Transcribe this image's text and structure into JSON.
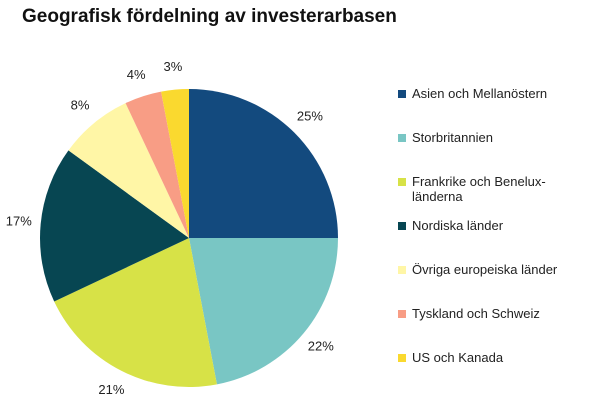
{
  "chart_data": {
    "type": "pie",
    "title": "Geografisk fördelning av investerarbasen",
    "slices": [
      {
        "name": "Asien och Mellanöstern",
        "value": 25,
        "label": "25%",
        "color": "#134a7e"
      },
      {
        "name": "Storbritannien",
        "value": 22,
        "label": "22%",
        "color": "#79c6c4"
      },
      {
        "name": "Frankrike och Benelux-länderna",
        "value": 21,
        "label": "21%",
        "color": "#d7e247"
      },
      {
        "name": "Nordiska länder",
        "value": 17,
        "label": "17%",
        "color": "#074652"
      },
      {
        "name": "Övriga europeiska länder",
        "value": 8,
        "label": "8%",
        "color": "#fff6a6"
      },
      {
        "name": "Tyskland och Schweiz",
        "value": 4,
        "label": "4%",
        "color": "#f89d85"
      },
      {
        "name": "US och Kanada",
        "value": 3,
        "label": "3%",
        "color": "#fad92f"
      }
    ],
    "legend_labels": [
      [
        "Asien och Mellanöstern"
      ],
      [
        "Storbritannien"
      ],
      [
        "Frankrike och Benelux-",
        "länderna"
      ],
      [
        "Nordiska länder"
      ],
      [
        "Övriga europeiska länder"
      ],
      [
        "Tyskland och Schweiz"
      ],
      [
        "US och Kanada"
      ]
    ],
    "legend_position": "right",
    "start_angle": "12 o'clock",
    "direction": "clockwise"
  }
}
